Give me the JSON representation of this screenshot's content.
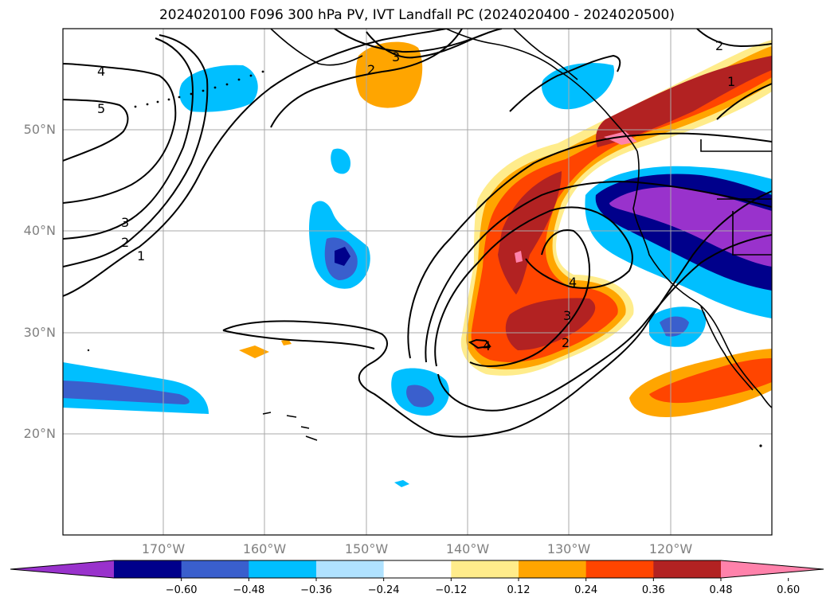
{
  "title": "2024020100 F096 300 hPa PV, IVT Landfall PC (2024020400 - 2024020500)",
  "latitude_labels": [
    "50°N",
    "40°N",
    "30°N",
    "20°N"
  ],
  "longitude_labels": [
    "170°W",
    "160°W",
    "150°W",
    "140°W",
    "130°W",
    "120°W"
  ],
  "pv_contour_labels": [
    "1",
    "2",
    "3",
    "4",
    "5"
  ],
  "colorbar": {
    "tick_labels": [
      "−0.60",
      "−0.48",
      "−0.36",
      "−0.24",
      "−0.12",
      "0.12",
      "0.24",
      "0.36",
      "0.48",
      "0.60"
    ],
    "colors": [
      "#9932cc",
      "#00008b",
      "#3a5fcd",
      "#00bfff",
      "#b0e2ff",
      "#ffffff",
      "#ffec8b",
      "#ffa500",
      "#ff4500",
      "#b22222",
      "#ff82ab"
    ]
  }
}
